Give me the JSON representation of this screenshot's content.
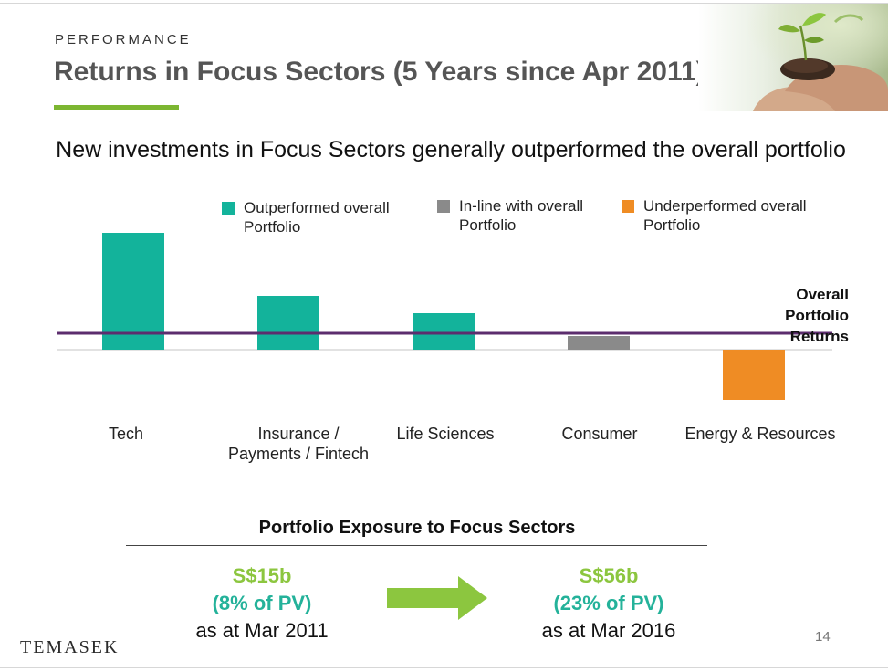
{
  "header": {
    "section_label": "PERFORMANCE",
    "title": "Returns in Focus Sectors (5 Years since Apr 2011)"
  },
  "headline": "New investments in Focus Sectors generally outperformed the overall portfolio",
  "legend": [
    {
      "label_line1": "Outperformed overall",
      "label_line2": "Portfolio",
      "color": "#13b39b"
    },
    {
      "label_line1": "In-line with overall",
      "label_line2": "Portfolio",
      "color": "#8a8a8a"
    },
    {
      "label_line1": "Underperformed overall",
      "label_line2": "Portfolio",
      "color": "#ef8c24"
    }
  ],
  "chart_data": {
    "type": "bar",
    "categories": [
      [
        "Tech"
      ],
      [
        "Insurance /",
        "Payments / Fintech"
      ],
      [
        "Life Sciences"
      ],
      [
        "Consumer"
      ],
      [
        "Energy & Resources"
      ]
    ],
    "values": [
      128,
      59,
      40,
      15,
      -55
    ],
    "value_units": "relative height (unlabeled axis)",
    "statuses": [
      "outperformed",
      "outperformed",
      "outperformed",
      "in-line",
      "underperformed"
    ],
    "reference_line": {
      "label_line1": "Overall Portfolio",
      "label_line2": "Returns",
      "value": 18,
      "color": "#5c2d6e"
    },
    "ylim": [
      -80,
      140
    ],
    "grid": false,
    "legend_position": "top",
    "colors": {
      "outperformed": "#13b39b",
      "in-line": "#8a8a8a",
      "underperformed": "#ef8c24"
    }
  },
  "exposure": {
    "title": "Portfolio Exposure to Focus Sectors",
    "before": {
      "value": "S$15b",
      "pct": "(8% of PV)",
      "date": "as at Mar 2011"
    },
    "after": {
      "value": "S$56b",
      "pct": "(23% of PV)",
      "date": "as at Mar 2016"
    },
    "arrow_color": "#8cc63f"
  },
  "footer": {
    "logo": "TEMASEK",
    "page_number": "14"
  }
}
